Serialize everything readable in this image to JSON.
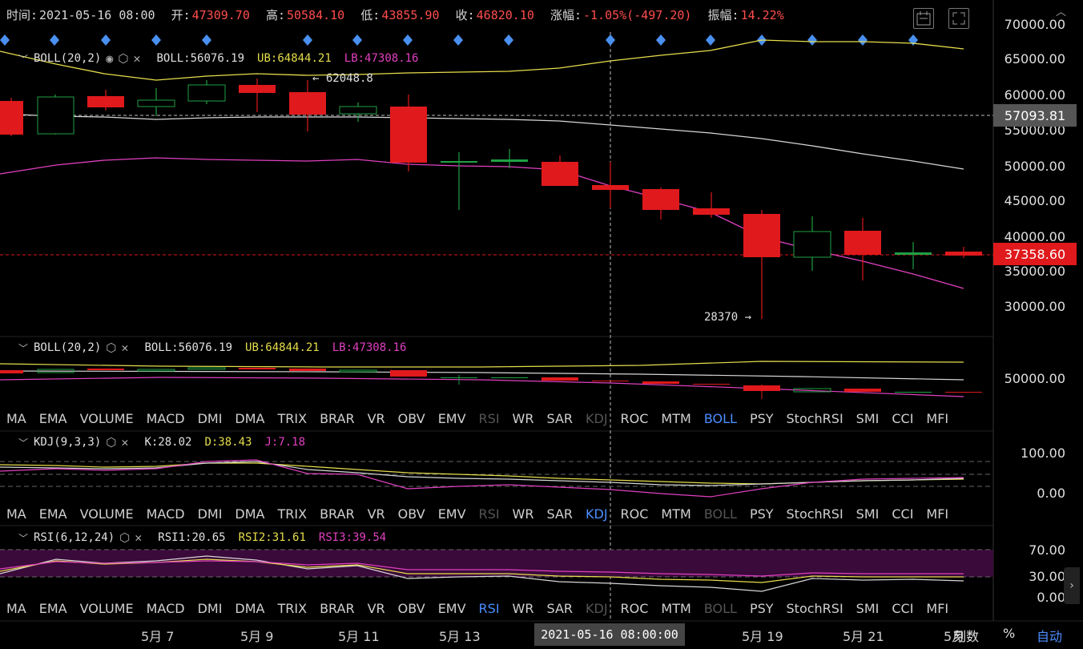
{
  "info": {
    "time_label": "时间:",
    "time": "2021-05-16 08:00",
    "open_label": "开:",
    "open": "47309.70",
    "high_label": "高:",
    "high": "50584.10",
    "low_label": "低:",
    "low": "43855.90",
    "close_label": "收:",
    "close": "46820.10",
    "change_label": "涨幅:",
    "change": "-1.05%(-497.20)",
    "amp_label": "振幅:",
    "amp": "14.22%"
  },
  "main": {
    "indicator": "BOLL(20,2)",
    "boll": "BOLL:56076.19",
    "ub": "UB:64844.21",
    "lb": "LB:47308.16",
    "annot_high": "← 62048.8",
    "annot_low": "28370 →",
    "axis": [
      "70000.00",
      "65000.00",
      "60000.00",
      "55000.00",
      "50000.00",
      "45000.00",
      "40000.00",
      "35000.00",
      "30000.00"
    ],
    "tag_gray": "57093.81",
    "tag_red": "37358.60"
  },
  "sub1": {
    "indicator": "BOLL(20,2)",
    "boll": "BOLL:56076.19",
    "ub": "UB:64844.21",
    "lb": "LB:47308.16",
    "axis": [
      "50000.00"
    ]
  },
  "tabs": [
    "MA",
    "EMA",
    "VOLUME",
    "MACD",
    "DMI",
    "DMA",
    "TRIX",
    "BRAR",
    "VR",
    "OBV",
    "EMV",
    "RSI",
    "WR",
    "SAR",
    "KDJ",
    "ROC",
    "MTM",
    "BOLL",
    "PSY",
    "StochRSI",
    "SMI",
    "CCI",
    "MFI"
  ],
  "sub2": {
    "indicator": "KDJ(9,3,3)",
    "k": "K:28.02",
    "d": "D:38.43",
    "j": "J:7.18",
    "axis": [
      "100.00",
      "0.00"
    ]
  },
  "sub3": {
    "indicator": "RSI(6,12,24)",
    "rsi1": "RSI1:20.65",
    "rsi2": "RSI2:31.61",
    "rsi3": "RSI3:39.54",
    "axis": [
      "70.00",
      "30.00",
      "0.00"
    ]
  },
  "xaxis": {
    "labels": [
      "5月 7",
      "5月 9",
      "5月 11",
      "5月 13",
      "5月 19",
      "5月 21",
      "5月"
    ],
    "crosshair": "2021-05-16 08:00:00",
    "r1": "刻数",
    "r2": "%",
    "r3": "自动"
  },
  "colors": {
    "up": "#1fa043",
    "down": "#e0191c",
    "ub": "#e6dd4c",
    "mid": "#d6d6d6",
    "lb": "#e040c0",
    "tab_active": "#4c8eff"
  }
}
